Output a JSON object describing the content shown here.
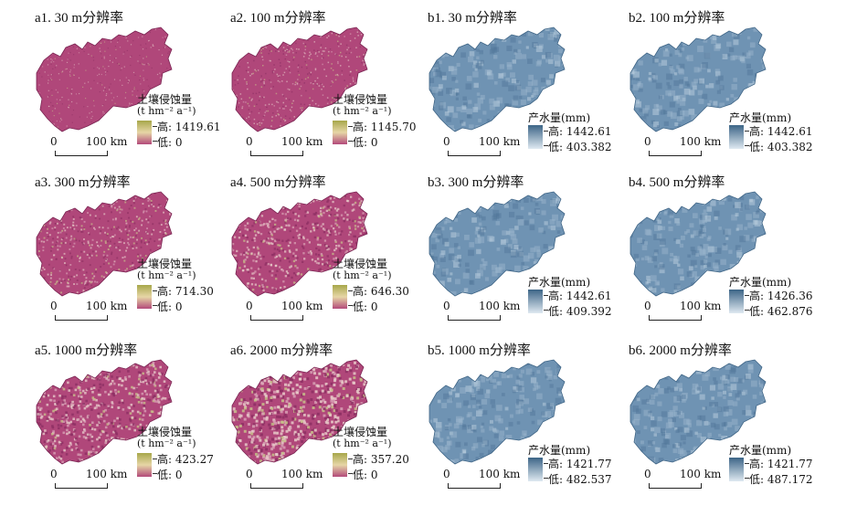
{
  "km_label": "100 km",
  "zero_label": "0",
  "soil": {
    "title": "土壤侵蚀量",
    "unit": "(t hm⁻² a⁻¹)",
    "high_prefix": "高:",
    "low_prefix": "低:",
    "colors": [
      "#a7a74a",
      "#e6d6a6",
      "#b34a7a"
    ]
  },
  "water": {
    "title": "产水量(mm)",
    "high_prefix": "高:",
    "low_prefix": "低:",
    "colors": [
      "#3d6587",
      "#dfe9f1"
    ]
  },
  "panels": [
    {
      "id": "a1",
      "title": "a1. 30 m分辨率",
      "type": "soil",
      "high": "1419.61",
      "low": "0"
    },
    {
      "id": "a2",
      "title": "a2. 100 m分辨率",
      "type": "soil",
      "high": "1145.70",
      "low": "0"
    },
    {
      "id": "b1",
      "title": "b1. 30 m分辨率",
      "type": "water",
      "high": "1442.61",
      "low": "403.382"
    },
    {
      "id": "b2",
      "title": "b2. 100 m分辨率",
      "type": "water",
      "high": "1442.61",
      "low": "403.382"
    },
    {
      "id": "a3",
      "title": "a3. 300 m分辨率",
      "type": "soil",
      "high": "714.30",
      "low": "0"
    },
    {
      "id": "a4",
      "title": "a4. 500 m分辨率",
      "type": "soil",
      "high": "646.30",
      "low": "0"
    },
    {
      "id": "b3",
      "title": "b3. 300 m分辨率",
      "type": "water",
      "high": "1442.61",
      "low": "409.392"
    },
    {
      "id": "b4",
      "title": "b4. 500 m分辨率",
      "type": "water",
      "high": "1426.36",
      "low": "462.876"
    },
    {
      "id": "a5",
      "title": "a5. 1000 m分辨率",
      "type": "soil",
      "high": "423.27",
      "low": "0"
    },
    {
      "id": "a6",
      "title": "a6. 2000 m分辨率",
      "type": "soil",
      "high": "357.20",
      "low": "0"
    },
    {
      "id": "b5",
      "title": "b5. 1000 m分辨率",
      "type": "water",
      "high": "1421.77",
      "low": "482.537"
    },
    {
      "id": "b6",
      "title": "b6. 2000 m分辨率",
      "type": "water",
      "high": "1421.77",
      "low": "487.172"
    }
  ]
}
